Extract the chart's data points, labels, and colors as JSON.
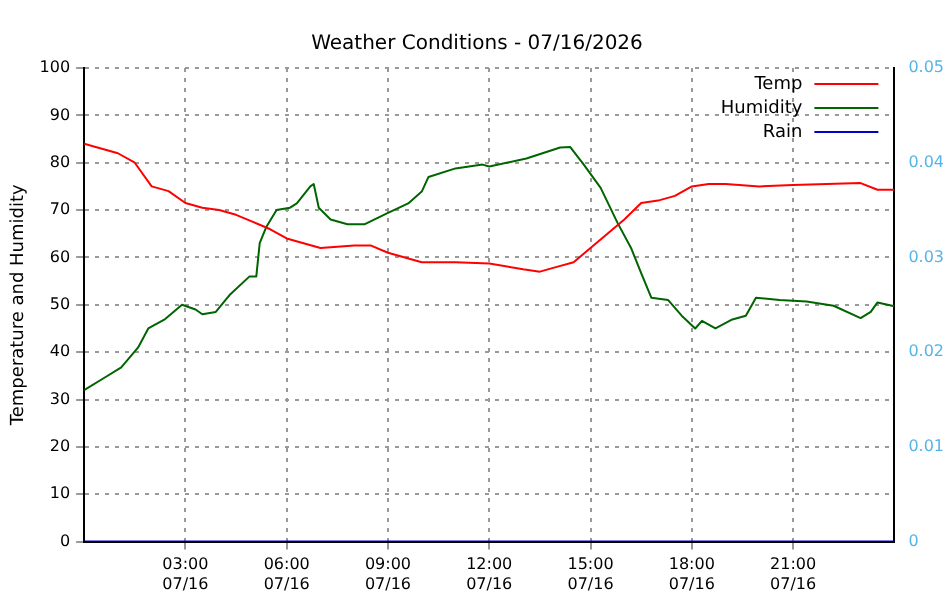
{
  "chart_data": {
    "type": "line",
    "title": "Weather Conditions - 07/16/2026",
    "ylabel": "Temperature and Humidity",
    "xlim": [
      "2026-07-16T00:00",
      "2026-07-17T00:00"
    ],
    "xticks": [
      {
        "value": "2026-07-16T03:00",
        "label": "03:00\n07/16"
      },
      {
        "value": "2026-07-16T06:00",
        "label": "06:00\n07/16"
      },
      {
        "value": "2026-07-16T09:00",
        "label": "09:00\n07/16"
      },
      {
        "value": "2026-07-16T12:00",
        "label": "12:00\n07/16"
      },
      {
        "value": "2026-07-16T15:00",
        "label": "15:00\n07/16"
      },
      {
        "value": "2026-07-16T18:00",
        "label": "18:00\n07/16"
      },
      {
        "value": "2026-07-16T21:00",
        "label": "21:00\n07/16"
      }
    ],
    "ylim": [
      0,
      100
    ],
    "yticks": [
      0,
      10,
      20,
      30,
      40,
      50,
      60,
      70,
      80,
      90,
      100
    ],
    "y2lim": [
      0,
      0.05
    ],
    "y2ticks": [
      0,
      0.01,
      0.02,
      0.03,
      0.04,
      0.05
    ],
    "grid": true,
    "legend": "top right",
    "series": [
      {
        "name": "Temp",
        "color": "#ff0000",
        "x": [
          "2026-07-16T00:00",
          "2026-07-16T00:30",
          "2026-07-16T01:00",
          "2026-07-16T01:30",
          "2026-07-16T02:00",
          "2026-07-16T02:30",
          "2026-07-16T03:00",
          "2026-07-16T03:30",
          "2026-07-16T04:00",
          "2026-07-16T04:30",
          "2026-07-16T05:00",
          "2026-07-16T05:30",
          "2026-07-16T06:00",
          "2026-07-16T06:30",
          "2026-07-16T07:00",
          "2026-07-16T08:00",
          "2026-07-16T08:30",
          "2026-07-16T09:00",
          "2026-07-16T09:30",
          "2026-07-16T10:00",
          "2026-07-16T11:00",
          "2026-07-16T12:00",
          "2026-07-16T13:00",
          "2026-07-16T13:30",
          "2026-07-16T14:00",
          "2026-07-16T14:30",
          "2026-07-16T15:00",
          "2026-07-16T15:30",
          "2026-07-16T16:00",
          "2026-07-16T16:30",
          "2026-07-16T17:00",
          "2026-07-16T17:30",
          "2026-07-16T18:00",
          "2026-07-16T18:30",
          "2026-07-16T19:00",
          "2026-07-16T20:00",
          "2026-07-16T21:00",
          "2026-07-16T22:00",
          "2026-07-16T23:00",
          "2026-07-16T23:30",
          "2026-07-17T00:00"
        ],
        "values": [
          84,
          83,
          82,
          80,
          75,
          74,
          71.5,
          70.5,
          70,
          69,
          67.5,
          66,
          64,
          63,
          62,
          62.5,
          62.5,
          61,
          60,
          59,
          59,
          58.7,
          57.5,
          57,
          58,
          59,
          62,
          65,
          68,
          71.5,
          72,
          73,
          75,
          75.5,
          75.5,
          75,
          75.3,
          75.5,
          75.7,
          74.3,
          74.3
        ]
      },
      {
        "name": "Humidity",
        "color": "#006400",
        "x": [
          "2026-07-16T00:00",
          "2026-07-16T00:36",
          "2026-07-16T01:06",
          "2026-07-16T01:36",
          "2026-07-16T01:54",
          "2026-07-16T02:24",
          "2026-07-16T02:54",
          "2026-07-16T03:18",
          "2026-07-16T03:30",
          "2026-07-16T03:54",
          "2026-07-16T04:18",
          "2026-07-16T04:54",
          "2026-07-16T05:06",
          "2026-07-16T05:12",
          "2026-07-16T05:24",
          "2026-07-16T05:42",
          "2026-07-16T06:06",
          "2026-07-16T06:18",
          "2026-07-16T06:42",
          "2026-07-16T06:48",
          "2026-07-16T06:57",
          "2026-07-16T07:18",
          "2026-07-16T07:48",
          "2026-07-16T08:18",
          "2026-07-16T09:00",
          "2026-07-16T09:36",
          "2026-07-16T10:00",
          "2026-07-16T10:12",
          "2026-07-16T11:00",
          "2026-07-16T11:48",
          "2026-07-16T12:00",
          "2026-07-16T13:06",
          "2026-07-16T14:06",
          "2026-07-16T14:24",
          "2026-07-16T14:48",
          "2026-07-16T15:18",
          "2026-07-16T15:48",
          "2026-07-16T16:12",
          "2026-07-16T16:30",
          "2026-07-16T16:48",
          "2026-07-16T17:18",
          "2026-07-16T17:42",
          "2026-07-16T18:06",
          "2026-07-16T18:18",
          "2026-07-16T18:42",
          "2026-07-16T19:12",
          "2026-07-16T19:36",
          "2026-07-16T19:54",
          "2026-07-16T20:36",
          "2026-07-16T21:24",
          "2026-07-16T22:12",
          "2026-07-16T23:00",
          "2026-07-16T23:18",
          "2026-07-16T23:30",
          "2026-07-17T00:00"
        ],
        "values": [
          32,
          34.6,
          36.8,
          41,
          45,
          47,
          50,
          49,
          48,
          48.5,
          52,
          56,
          56,
          63,
          66.5,
          70,
          70.5,
          71.4,
          75,
          75.5,
          70.5,
          68,
          67,
          67,
          69.4,
          71.4,
          73.9,
          77,
          78.8,
          79.6,
          79.2,
          80.9,
          83.2,
          83.3,
          79.6,
          74.7,
          67.3,
          62,
          56.7,
          51.5,
          51,
          47.7,
          45,
          46.6,
          45,
          46.9,
          47.7,
          51.5,
          51,
          50.7,
          49.8,
          47.2,
          48.5,
          50.5,
          49.7
        ]
      },
      {
        "name": "Rain",
        "color": "#0000cc",
        "x": [
          "2026-07-16T00:00",
          "2026-07-17T00:00"
        ],
        "values": [
          0,
          0
        ]
      }
    ]
  }
}
